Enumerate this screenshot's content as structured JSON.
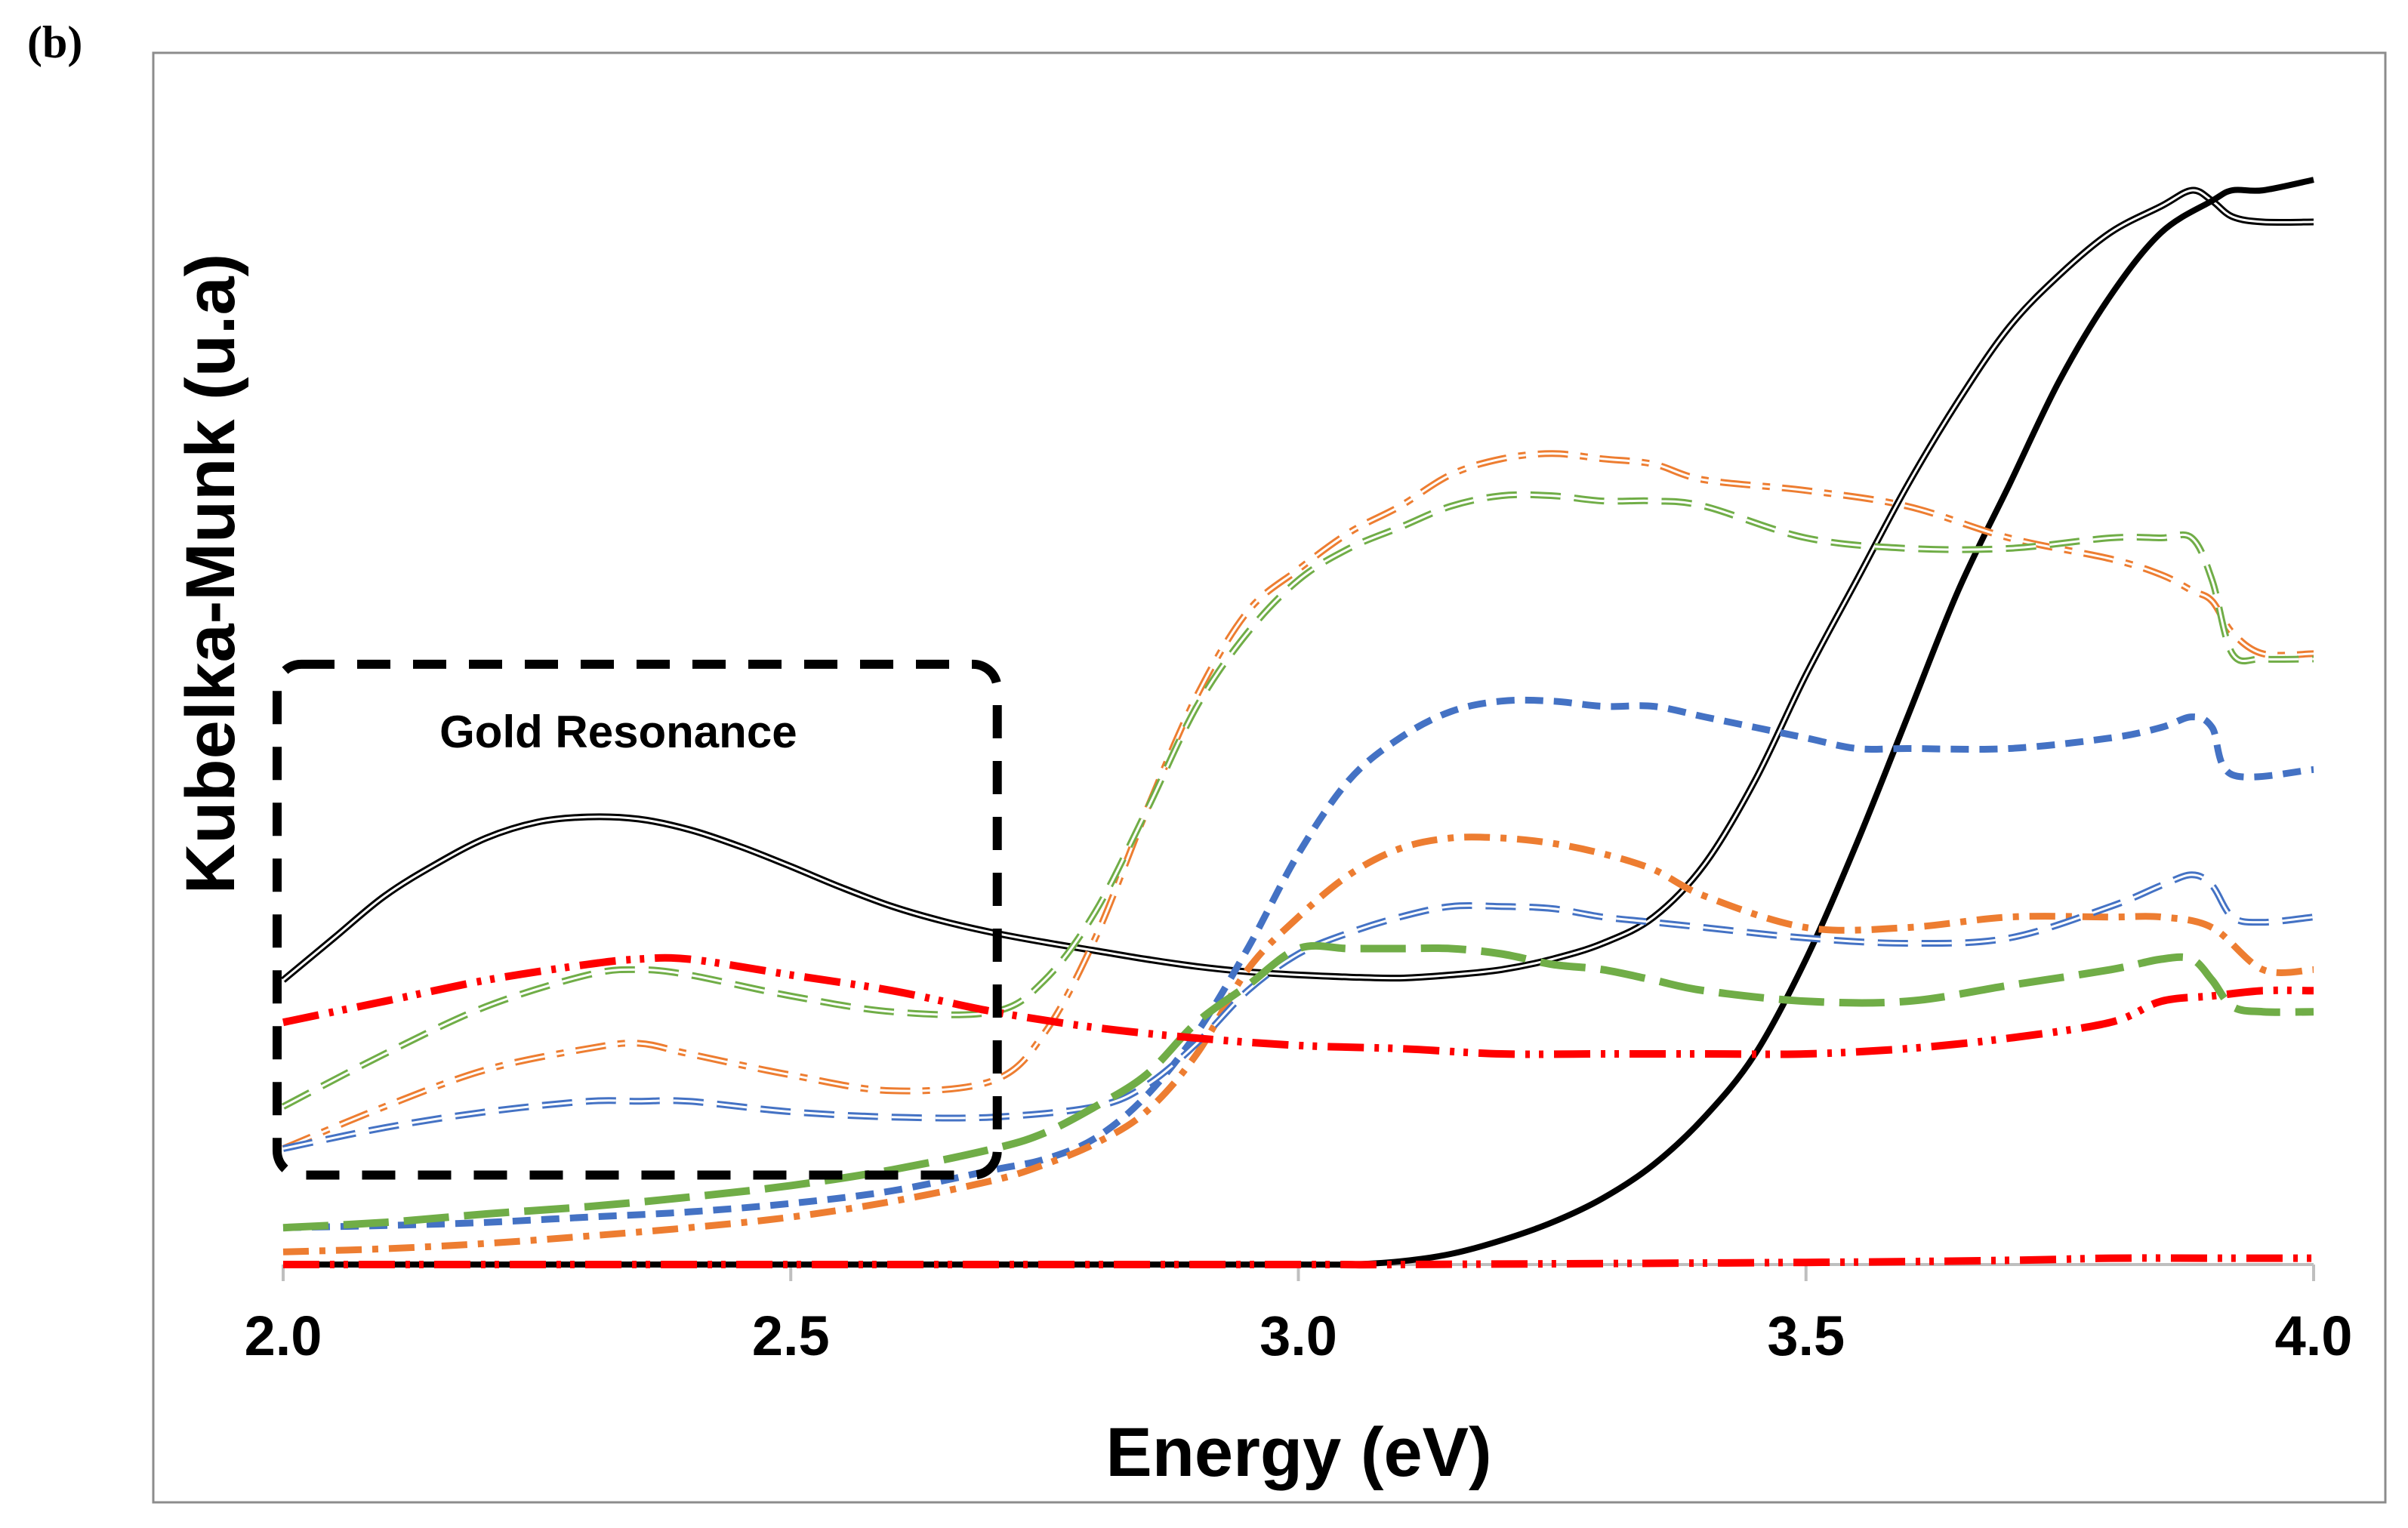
{
  "panel_label": "(b)",
  "chart_data": {
    "type": "line",
    "title": "",
    "xlabel": "Energy (eV)",
    "ylabel": "Kubelka-Munk (u.a)",
    "xlim": [
      2.0,
      4.0
    ],
    "ylim": [
      0,
      1.0
    ],
    "xticks": [
      "2.0",
      "2.5",
      "3.0",
      "3.5",
      "4.0"
    ],
    "xtick_values": [
      2.0,
      2.5,
      3.0,
      3.5,
      4.0
    ],
    "grid": false,
    "annotation": {
      "text": "Gold Resonance",
      "x_range": [
        2.0,
        2.69
      ],
      "y_range": [
        0.11,
        0.57
      ]
    },
    "series": [
      {
        "name": "black-double",
        "color": "#000000",
        "style": "double-solid",
        "x": [
          2.0,
          2.05,
          2.1,
          2.15,
          2.2,
          2.25,
          2.3,
          2.35,
          2.4,
          2.45,
          2.5,
          2.55,
          2.6,
          2.65,
          2.7,
          2.75,
          2.8,
          2.85,
          2.9,
          2.95,
          3.0,
          3.05,
          3.1,
          3.15,
          3.2,
          3.25,
          3.3,
          3.35,
          3.4,
          3.45,
          3.5,
          3.55,
          3.6,
          3.65,
          3.7,
          3.75,
          3.8,
          3.85,
          3.88,
          3.9,
          3.92,
          3.95,
          4.0
        ],
        "y": [
          0.27,
          0.31,
          0.35,
          0.38,
          0.405,
          0.42,
          0.425,
          0.423,
          0.413,
          0.397,
          0.378,
          0.358,
          0.34,
          0.326,
          0.315,
          0.306,
          0.298,
          0.29,
          0.283,
          0.278,
          0.275,
          0.273,
          0.272,
          0.275,
          0.28,
          0.29,
          0.305,
          0.33,
          0.38,
          0.46,
          0.56,
          0.65,
          0.74,
          0.82,
          0.89,
          0.94,
          0.98,
          1.005,
          1.02,
          1.01,
          0.995,
          0.99,
          0.99
        ]
      },
      {
        "name": "black-solid",
        "color": "#000000",
        "style": "solid",
        "x": [
          2.0,
          2.5,
          3.0,
          3.05,
          3.1,
          3.15,
          3.2,
          3.25,
          3.3,
          3.35,
          3.4,
          3.45,
          3.5,
          3.55,
          3.6,
          3.65,
          3.7,
          3.75,
          3.8,
          3.85,
          3.9,
          3.92,
          3.95,
          4.0
        ],
        "y": [
          0.0,
          0.0,
          0.0,
          0.0,
          0.003,
          0.01,
          0.023,
          0.04,
          0.063,
          0.095,
          0.14,
          0.2,
          0.29,
          0.4,
          0.52,
          0.64,
          0.74,
          0.84,
          0.92,
          0.98,
          1.01,
          1.02,
          1.02,
          1.03
        ]
      },
      {
        "name": "orange-double-dashdot",
        "color": "#ED7D31",
        "style": "double-dashdot",
        "x": [
          2.0,
          2.1,
          2.2,
          2.3,
          2.35,
          2.4,
          2.5,
          2.6,
          2.7,
          2.75,
          2.8,
          2.85,
          2.9,
          2.95,
          3.0,
          3.05,
          3.1,
          3.15,
          3.2,
          3.25,
          3.3,
          3.35,
          3.4,
          3.5,
          3.6,
          3.7,
          3.8,
          3.85,
          3.88,
          3.9,
          3.92,
          3.95,
          4.0
        ],
        "y": [
          0.11,
          0.15,
          0.185,
          0.205,
          0.21,
          0.2,
          0.18,
          0.165,
          0.175,
          0.22,
          0.31,
          0.43,
          0.54,
          0.62,
          0.66,
          0.695,
          0.72,
          0.75,
          0.765,
          0.77,
          0.765,
          0.76,
          0.745,
          0.735,
          0.72,
          0.69,
          0.67,
          0.655,
          0.64,
          0.63,
          0.6,
          0.58,
          0.58
        ]
      },
      {
        "name": "green-double-dash",
        "color": "#70AD47",
        "style": "double-dash",
        "x": [
          2.0,
          2.1,
          2.2,
          2.3,
          2.35,
          2.4,
          2.5,
          2.6,
          2.7,
          2.75,
          2.8,
          2.85,
          2.9,
          2.95,
          3.0,
          3.05,
          3.1,
          3.15,
          3.2,
          3.25,
          3.3,
          3.35,
          3.4,
          3.5,
          3.6,
          3.7,
          3.8,
          3.85,
          3.88,
          3.9,
          3.92,
          3.95,
          4.0
        ],
        "y": [
          0.15,
          0.2,
          0.245,
          0.275,
          0.28,
          0.275,
          0.255,
          0.24,
          0.24,
          0.27,
          0.335,
          0.43,
          0.53,
          0.6,
          0.65,
          0.68,
          0.7,
          0.72,
          0.73,
          0.73,
          0.725,
          0.725,
          0.72,
          0.69,
          0.68,
          0.68,
          0.69,
          0.69,
          0.69,
          0.65,
          0.58,
          0.575,
          0.575
        ]
      },
      {
        "name": "blue-dash",
        "color": "#4472C4",
        "style": "dash",
        "x": [
          2.0,
          2.1,
          2.2,
          2.3,
          2.4,
          2.5,
          2.6,
          2.7,
          2.75,
          2.8,
          2.85,
          2.9,
          2.95,
          3.0,
          3.05,
          3.1,
          3.15,
          3.2,
          3.25,
          3.3,
          3.35,
          3.4,
          3.45,
          3.5,
          3.55,
          3.6,
          3.7,
          3.8,
          3.85,
          3.88,
          3.9,
          3.92,
          4.0
        ],
        "y": [
          0.035,
          0.037,
          0.04,
          0.045,
          0.05,
          0.058,
          0.07,
          0.09,
          0.1,
          0.12,
          0.16,
          0.22,
          0.3,
          0.39,
          0.46,
          0.5,
          0.525,
          0.535,
          0.535,
          0.53,
          0.53,
          0.52,
          0.51,
          0.5,
          0.49,
          0.49,
          0.49,
          0.5,
          0.51,
          0.52,
          0.51,
          0.465,
          0.47
        ]
      },
      {
        "name": "orange-dashdot",
        "color": "#ED7D31",
        "style": "dashdot",
        "x": [
          2.0,
          2.1,
          2.2,
          2.3,
          2.4,
          2.5,
          2.6,
          2.7,
          2.75,
          2.8,
          2.85,
          2.9,
          2.95,
          3.0,
          3.05,
          3.1,
          3.15,
          3.2,
          3.25,
          3.3,
          3.35,
          3.4,
          3.5,
          3.6,
          3.7,
          3.8,
          3.85,
          3.9,
          3.95,
          4.0
        ],
        "y": [
          0.012,
          0.015,
          0.02,
          0.027,
          0.035,
          0.045,
          0.06,
          0.08,
          0.095,
          0.115,
          0.145,
          0.2,
          0.28,
          0.33,
          0.37,
          0.395,
          0.405,
          0.405,
          0.4,
          0.39,
          0.375,
          0.35,
          0.32,
          0.32,
          0.33,
          0.33,
          0.33,
          0.32,
          0.28,
          0.28
        ]
      },
      {
        "name": "blue-double-dash",
        "color": "#4472C4",
        "style": "double-dash",
        "x": [
          2.0,
          2.1,
          2.2,
          2.3,
          2.35,
          2.4,
          2.5,
          2.6,
          2.7,
          2.8,
          2.85,
          2.9,
          2.95,
          3.0,
          3.05,
          3.1,
          3.15,
          3.2,
          3.25,
          3.3,
          3.35,
          3.4,
          3.5,
          3.6,
          3.7,
          3.8,
          3.85,
          3.88,
          3.9,
          3.92,
          3.95,
          4.0
        ],
        "y": [
          0.11,
          0.13,
          0.145,
          0.155,
          0.155,
          0.155,
          0.145,
          0.14,
          0.14,
          0.15,
          0.17,
          0.21,
          0.26,
          0.295,
          0.315,
          0.33,
          0.34,
          0.34,
          0.338,
          0.33,
          0.325,
          0.32,
          0.31,
          0.305,
          0.31,
          0.34,
          0.36,
          0.37,
          0.36,
          0.33,
          0.325,
          0.33
        ]
      },
      {
        "name": "green-dash",
        "color": "#70AD47",
        "style": "longdash",
        "x": [
          2.0,
          2.1,
          2.2,
          2.3,
          2.4,
          2.5,
          2.6,
          2.7,
          2.75,
          2.8,
          2.85,
          2.9,
          2.95,
          3.0,
          3.05,
          3.1,
          3.15,
          3.2,
          3.25,
          3.3,
          3.35,
          3.4,
          3.5,
          3.6,
          3.7,
          3.8,
          3.85,
          3.88,
          3.9,
          3.92,
          3.95,
          4.0
        ],
        "y": [
          0.035,
          0.04,
          0.048,
          0.055,
          0.064,
          0.075,
          0.09,
          0.11,
          0.125,
          0.15,
          0.18,
          0.23,
          0.265,
          0.3,
          0.3,
          0.3,
          0.3,
          0.295,
          0.285,
          0.28,
          0.27,
          0.26,
          0.25,
          0.25,
          0.265,
          0.28,
          0.29,
          0.29,
          0.27,
          0.245,
          0.24,
          0.24
        ]
      },
      {
        "name": "red-dashdotdot",
        "color": "#FF0000",
        "style": "dashdotdot",
        "x": [
          2.0,
          2.1,
          2.2,
          2.3,
          2.35,
          2.4,
          2.5,
          2.6,
          2.7,
          2.8,
          2.9,
          3.0,
          3.1,
          3.2,
          3.3,
          3.4,
          3.5,
          3.6,
          3.7,
          3.8,
          3.85,
          3.9,
          3.95,
          4.0
        ],
        "y": [
          0.23,
          0.25,
          0.27,
          0.285,
          0.29,
          0.29,
          0.275,
          0.26,
          0.24,
          0.225,
          0.215,
          0.208,
          0.205,
          0.2,
          0.2,
          0.2,
          0.2,
          0.205,
          0.215,
          0.23,
          0.25,
          0.255,
          0.26,
          0.26
        ]
      },
      {
        "name": "red-baseline",
        "color": "#FF0000",
        "style": "dashdotdot",
        "x": [
          2.0,
          2.5,
          3.0,
          3.1,
          3.5,
          3.7,
          3.8,
          3.9,
          4.0
        ],
        "y": [
          0.0,
          0.0,
          0.0,
          0.0,
          0.002,
          0.004,
          0.006,
          0.006,
          0.006
        ]
      }
    ]
  }
}
